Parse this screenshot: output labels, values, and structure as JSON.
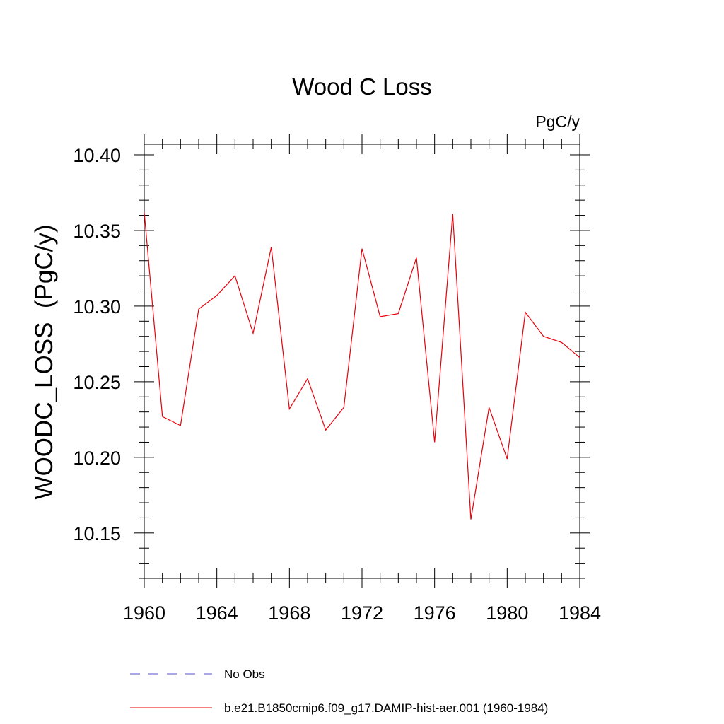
{
  "chart_data": {
    "type": "line",
    "title": "Wood C Loss",
    "units": "PgC/y",
    "ylabel": "WOODC_LOSS  (PgC/y)",
    "xlabel": "",
    "xlim": [
      1960,
      1984
    ],
    "ylim": [
      10.12,
      10.407
    ],
    "x_ticks": [
      "1960",
      "1964",
      "1968",
      "1972",
      "1976",
      "1980",
      "1984"
    ],
    "y_ticks": [
      "10.15",
      "10.20",
      "10.25",
      "10.30",
      "10.35",
      "10.40"
    ],
    "grid": false,
    "legend": [
      {
        "label": "No Obs",
        "color": "#5a4fcf",
        "dash": true
      },
      {
        "label": "b.e21.B1850cmip6.f09_g17.DAMIP-hist-aer.001 (1960-1984)",
        "color": "#e8000b",
        "dash": false
      }
    ],
    "series": [
      {
        "color": "#e8000b",
        "x": [
          1960,
          1961,
          1962,
          1963,
          1964,
          1965,
          1966,
          1967,
          1968,
          1969,
          1970,
          1971,
          1972,
          1973,
          1974,
          1975,
          1976,
          1977,
          1978,
          1979,
          1980,
          1981,
          1982,
          1983,
          1984
        ],
        "values": [
          10.362,
          10.227,
          10.221,
          10.298,
          10.307,
          10.32,
          10.282,
          10.339,
          10.232,
          10.252,
          10.218,
          10.233,
          10.338,
          10.293,
          10.295,
          10.332,
          10.21,
          10.361,
          10.159,
          10.233,
          10.199,
          10.296,
          10.28,
          10.276,
          10.266
        ]
      }
    ]
  }
}
